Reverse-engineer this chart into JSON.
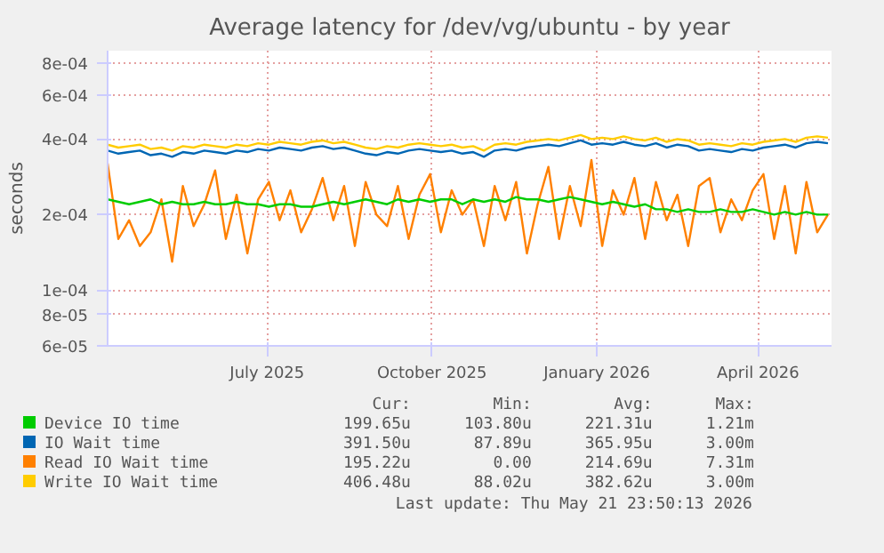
{
  "chart_data": {
    "type": "line",
    "title": "Average latency for /dev/vg/ubuntu - by year",
    "ylabel": "seconds",
    "x": [
      "2025-04-03",
      "2025-04-09",
      "2025-04-15",
      "2025-04-21",
      "2025-04-27",
      "2025-05-03",
      "2025-05-09",
      "2025-05-15",
      "2025-05-21",
      "2025-05-27",
      "2025-06-02",
      "2025-06-08",
      "2025-06-14",
      "2025-06-20",
      "2025-06-26",
      "2025-07-02",
      "2025-07-08",
      "2025-07-14",
      "2025-07-20",
      "2025-07-26",
      "2025-08-01",
      "2025-08-07",
      "2025-08-13",
      "2025-08-19",
      "2025-08-25",
      "2025-08-31",
      "2025-09-06",
      "2025-09-12",
      "2025-09-18",
      "2025-09-24",
      "2025-09-30",
      "2025-10-06",
      "2025-10-12",
      "2025-10-18",
      "2025-10-24",
      "2025-10-30",
      "2025-11-05",
      "2025-11-11",
      "2025-11-17",
      "2025-11-23",
      "2025-11-29",
      "2025-12-05",
      "2025-12-11",
      "2025-12-17",
      "2025-12-23",
      "2025-12-29",
      "2026-01-04",
      "2026-01-10",
      "2026-01-16",
      "2026-01-22",
      "2026-01-28",
      "2026-02-03",
      "2026-02-09",
      "2026-02-15",
      "2026-02-21",
      "2026-02-27",
      "2026-03-05",
      "2026-03-11",
      "2026-03-17",
      "2026-03-23",
      "2026-03-29",
      "2026-04-04",
      "2026-04-10",
      "2026-04-16",
      "2026-04-22",
      "2026-04-28",
      "2026-05-04",
      "2026-05-10"
    ],
    "series": [
      {
        "name": "Device IO time",
        "color": "#00cc00",
        "values": [
          0.00023,
          0.000225,
          0.00022,
          0.000225,
          0.00023,
          0.00022,
          0.000225,
          0.00022,
          0.00022,
          0.000225,
          0.00022,
          0.00022,
          0.000225,
          0.00022,
          0.00022,
          0.000215,
          0.00022,
          0.00022,
          0.000215,
          0.000215,
          0.00022,
          0.000225,
          0.00022,
          0.000225,
          0.00023,
          0.000225,
          0.00022,
          0.00023,
          0.000225,
          0.00023,
          0.000225,
          0.00023,
          0.00023,
          0.00022,
          0.00023,
          0.000225,
          0.00023,
          0.000225,
          0.000235,
          0.00023,
          0.00023,
          0.000225,
          0.00023,
          0.000235,
          0.00023,
          0.000225,
          0.00022,
          0.000225,
          0.00022,
          0.000215,
          0.00022,
          0.00021,
          0.00021,
          0.000205,
          0.00021,
          0.000205,
          0.000205,
          0.00021,
          0.000205,
          0.000205,
          0.00021,
          0.000205,
          0.0002,
          0.000205,
          0.0002,
          0.000205,
          0.0002,
          0.0002
        ]
      },
      {
        "name": "IO Wait time",
        "color": "#0066b3",
        "values": [
          0.00036,
          0.00035,
          0.000355,
          0.00036,
          0.000345,
          0.00035,
          0.00034,
          0.000355,
          0.00035,
          0.00036,
          0.000355,
          0.00035,
          0.00036,
          0.000355,
          0.000365,
          0.00036,
          0.00037,
          0.000365,
          0.00036,
          0.00037,
          0.000375,
          0.000365,
          0.00037,
          0.00036,
          0.00035,
          0.000345,
          0.000355,
          0.00035,
          0.00036,
          0.000365,
          0.00036,
          0.000355,
          0.00036,
          0.00035,
          0.000355,
          0.00034,
          0.00036,
          0.000365,
          0.00036,
          0.00037,
          0.000375,
          0.00038,
          0.000375,
          0.000385,
          0.000395,
          0.00038,
          0.000385,
          0.00038,
          0.00039,
          0.00038,
          0.000375,
          0.000385,
          0.00037,
          0.00038,
          0.000375,
          0.00036,
          0.000365,
          0.00036,
          0.000355,
          0.000365,
          0.00036,
          0.00037,
          0.000375,
          0.00038,
          0.00037,
          0.000385,
          0.00039,
          0.000385
        ]
      },
      {
        "name": "Read IO Wait time",
        "color": "#ff8000",
        "values": [
          0.00032,
          0.00016,
          0.00019,
          0.00015,
          0.00017,
          0.00023,
          0.00013,
          0.00026,
          0.00018,
          0.00022,
          0.0003,
          0.00016,
          0.00024,
          0.00014,
          0.00023,
          0.00027,
          0.00019,
          0.00025,
          0.00017,
          0.00021,
          0.00028,
          0.00019,
          0.00026,
          0.00015,
          0.00027,
          0.0002,
          0.00018,
          0.00026,
          0.00016,
          0.00024,
          0.00029,
          0.00017,
          0.00025,
          0.0002,
          0.00023,
          0.00015,
          0.00026,
          0.00019,
          0.00027,
          0.00014,
          0.00022,
          0.00031,
          0.00016,
          0.00026,
          0.00018,
          0.00033,
          0.00015,
          0.00025,
          0.0002,
          0.00028,
          0.00016,
          0.00027,
          0.00019,
          0.00024,
          0.00015,
          0.00026,
          0.00028,
          0.00017,
          0.00023,
          0.00019,
          0.00025,
          0.00029,
          0.00016,
          0.00026,
          0.00014,
          0.00027,
          0.00017,
          0.0002
        ]
      },
      {
        "name": "Write IO Wait time",
        "color": "#ffcc00",
        "values": [
          0.00038,
          0.00037,
          0.000375,
          0.00038,
          0.000365,
          0.00037,
          0.00036,
          0.000375,
          0.00037,
          0.00038,
          0.000375,
          0.00037,
          0.00038,
          0.000375,
          0.000385,
          0.00038,
          0.00039,
          0.000385,
          0.00038,
          0.00039,
          0.000395,
          0.000385,
          0.00039,
          0.00038,
          0.00037,
          0.000365,
          0.000375,
          0.00037,
          0.00038,
          0.000385,
          0.00038,
          0.000375,
          0.00038,
          0.00037,
          0.000375,
          0.00036,
          0.00038,
          0.000385,
          0.00038,
          0.00039,
          0.000395,
          0.0004,
          0.000395,
          0.000405,
          0.000415,
          0.0004,
          0.000405,
          0.0004,
          0.00041,
          0.0004,
          0.000395,
          0.000405,
          0.00039,
          0.0004,
          0.000395,
          0.00038,
          0.000385,
          0.00038,
          0.000375,
          0.000385,
          0.00038,
          0.00039,
          0.000395,
          0.0004,
          0.00039,
          0.000405,
          0.00041,
          0.000405
        ]
      }
    ],
    "log": "y",
    "xlim": [
      "2025-04-03",
      "2026-05-12"
    ],
    "xticks": [
      {
        "value": "2025-07-01",
        "label": "July 2025"
      },
      {
        "value": "2025-10-01",
        "label": "October 2025"
      },
      {
        "value": "2026-01-01",
        "label": "January 2026"
      },
      {
        "value": "2026-04-01",
        "label": "April 2026"
      }
    ],
    "ylim": [
      6e-05,
      0.0009
    ],
    "yticks": [
      {
        "value": 6e-05,
        "label": "6e-05"
      },
      {
        "value": 8e-05,
        "label": "8e-05"
      },
      {
        "value": 0.0001,
        "label": "1e-04"
      },
      {
        "value": 0.0002,
        "label": "2e-04"
      },
      {
        "value": 0.0004,
        "label": "4e-04"
      },
      {
        "value": 0.0006,
        "label": "6e-04"
      },
      {
        "value": 0.0008,
        "label": "8e-04"
      }
    ],
    "grid": true,
    "legend": "bottom",
    "marker": "none",
    "line_style": "solid",
    "annotations": [
      "Cur:",
      "Min:",
      "Avg:",
      "Max:",
      "199.65u",
      "103.80u",
      "221.31u",
      "1.21m",
      "391.50u",
      "87.89u",
      "365.95u",
      "3.00m",
      "195.22u",
      "0.00",
      "214.69u",
      "7.31m",
      "406.48u",
      "88.02u",
      "382.62u",
      "3.00m",
      "Last update: Thu May 21 23:50:13 2026"
    ]
  }
}
